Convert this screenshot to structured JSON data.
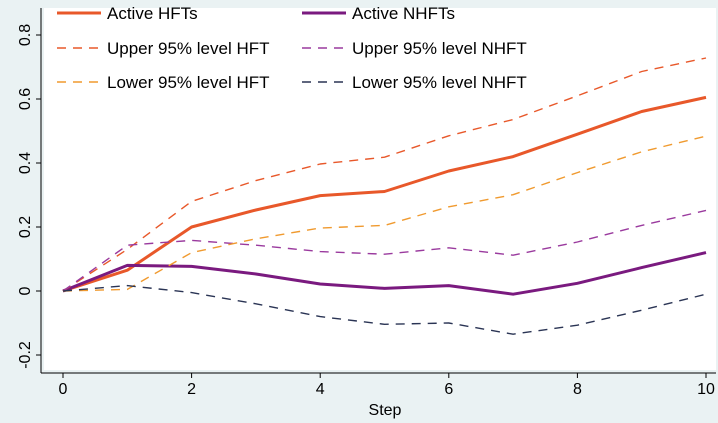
{
  "chart_data": {
    "type": "line",
    "title": "",
    "xlabel": "Step",
    "ylabel": "",
    "x": [
      0,
      1,
      2,
      3,
      4,
      5,
      6,
      7,
      8,
      9,
      10
    ],
    "xlim": [
      0,
      10
    ],
    "ylim": [
      -0.2,
      0.8
    ],
    "xticks": [
      0,
      2,
      4,
      6,
      8,
      10
    ],
    "yticks": [
      -0.2,
      0,
      0.2,
      0.4,
      0.6,
      0.8
    ],
    "xtick_labels": [
      "0",
      "2",
      "4",
      "6",
      "8",
      "10"
    ],
    "ytick_labels": [
      "-0.2",
      "0",
      "0.2",
      "0.4",
      "0.6",
      "0.8"
    ],
    "grid": false,
    "legend_placement": "top, two columns inside plot",
    "series": [
      {
        "name": "Active HFTs",
        "color": "#e8582a",
        "style": "solid",
        "values": [
          0,
          0.065,
          0.2,
          0.253,
          0.298,
          0.311,
          0.375,
          0.42,
          0.49,
          0.561,
          0.605
        ]
      },
      {
        "name": "Active NHFTs",
        "color": "#7a1a7f",
        "style": "solid",
        "values": [
          0,
          0.08,
          0.077,
          0.053,
          0.022,
          0.008,
          0.017,
          -0.01,
          0.024,
          0.073,
          0.12
        ]
      },
      {
        "name": "Upper 95% level HFT",
        "color": "#e8582a",
        "style": "dashed",
        "values": [
          0,
          0.13,
          0.28,
          0.345,
          0.397,
          0.418,
          0.485,
          0.536,
          0.61,
          0.686,
          0.728
        ]
      },
      {
        "name": "Upper 95% level NHFT",
        "color": "#9a3a9e",
        "style": "dashed",
        "values": [
          0,
          0.143,
          0.158,
          0.143,
          0.123,
          0.115,
          0.135,
          0.112,
          0.153,
          0.205,
          0.252
        ]
      },
      {
        "name": "Lower 95% level HFT",
        "color": "#f09a2f",
        "style": "dashed",
        "values": [
          0,
          0.005,
          0.12,
          0.163,
          0.197,
          0.205,
          0.263,
          0.301,
          0.37,
          0.435,
          0.484
        ]
      },
      {
        "name": "Lower 95% level NHFT",
        "color": "#2a3454",
        "style": "dashed",
        "values": [
          0,
          0.017,
          -0.005,
          -0.04,
          -0.08,
          -0.104,
          -0.1,
          -0.135,
          -0.107,
          -0.06,
          -0.01
        ]
      }
    ]
  }
}
